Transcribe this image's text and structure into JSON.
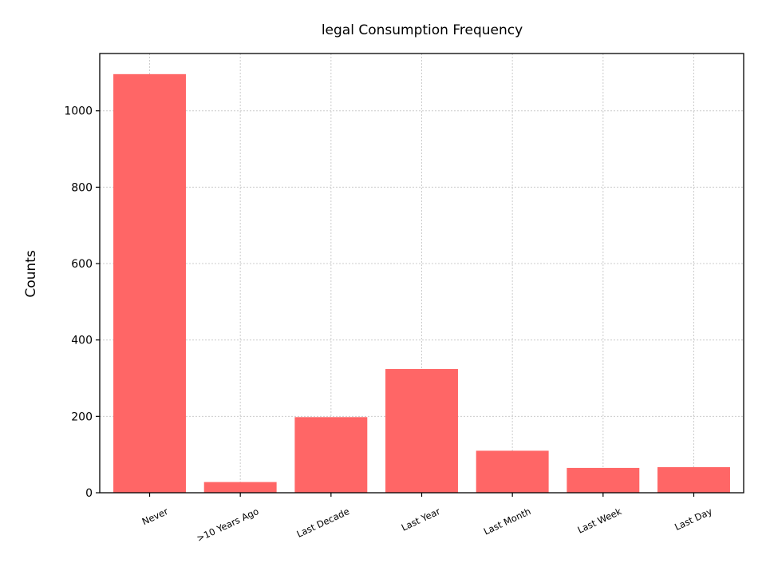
{
  "chart_data": {
    "type": "bar",
    "title": "legal Consumption Frequency",
    "xlabel": "",
    "ylabel": "Counts",
    "categories": [
      "Never",
      ">10 Years Ago",
      "Last Decade",
      "Last Year",
      "Last Month",
      "Last Week",
      "Last Day"
    ],
    "values": [
      1096,
      28,
      198,
      324,
      110,
      65,
      67
    ],
    "ylim": [
      0,
      1150
    ],
    "yticks": [
      0,
      200,
      400,
      600,
      800,
      1000
    ],
    "grid": true,
    "bar_color": "#ff6666",
    "legend": null
  }
}
